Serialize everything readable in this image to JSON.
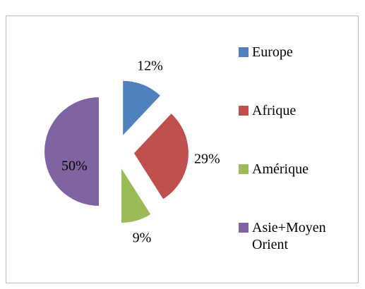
{
  "chart_data": {
    "type": "pie",
    "categories": [
      "Europe",
      "Afrique",
      "Amérique",
      "Asie+Moyen Orient"
    ],
    "values": [
      12,
      29,
      9,
      50
    ],
    "value_labels": [
      "12%",
      "29%",
      "9%",
      "50%"
    ],
    "colors": [
      "#4f81bd",
      "#c0504d",
      "#9bbb59",
      "#8064a2"
    ],
    "exploded": true,
    "legend": "right"
  }
}
